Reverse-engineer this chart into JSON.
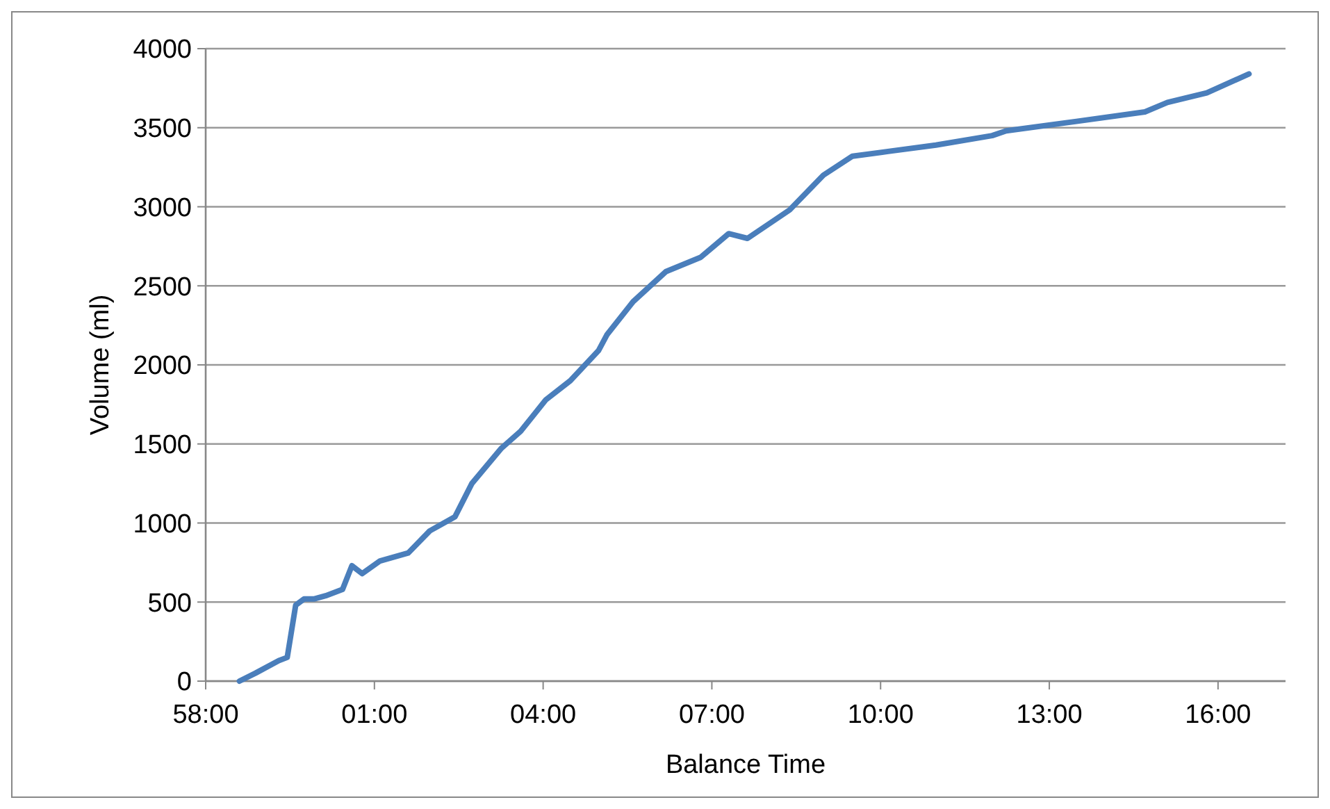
{
  "chart_data": {
    "type": "line",
    "xlabel": "Balance Time",
    "ylabel": "Volume (ml)",
    "xlim": [
      "2000-01-01T00:58:00",
      "2000-01-01T01:17:12"
    ],
    "xticks": [
      {
        "value": "2000-01-01T00:58:00",
        "label": "58:00"
      },
      {
        "value": "2000-01-01T01:01:00",
        "label": "01:00"
      },
      {
        "value": "2000-01-01T01:04:00",
        "label": "04:00"
      },
      {
        "value": "2000-01-01T01:07:00",
        "label": "07:00"
      },
      {
        "value": "2000-01-01T01:10:00",
        "label": "10:00"
      },
      {
        "value": "2000-01-01T01:13:00",
        "label": "13:00"
      },
      {
        "value": "2000-01-01T01:16:00",
        "label": "16:00"
      }
    ],
    "ylim": [
      0,
      4000
    ],
    "yticks": [
      0,
      500,
      1000,
      1500,
      2000,
      2500,
      3000,
      3500,
      4000
    ],
    "grid": "y",
    "series": [
      {
        "color": "#4a7ebb",
        "x": [
          "2000-01-01T00:58:36",
          "2000-01-01T00:58:53",
          "2000-01-01T00:59:18",
          "2000-01-01T00:59:27",
          "2000-01-01T00:59:36",
          "2000-01-01T00:59:45",
          "2000-01-01T00:59:56",
          "2000-01-01T01:00:08",
          "2000-01-01T01:00:26",
          "2000-01-01T01:00:36",
          "2000-01-01T01:00:47",
          "2000-01-01T01:01:06",
          "2000-01-01T01:01:36",
          "2000-01-01T01:01:59",
          "2000-01-01T01:02:26",
          "2000-01-01T01:02:44",
          "2000-01-01T01:03:15",
          "2000-01-01T01:03:36",
          "2000-01-01T01:04:03",
          "2000-01-01T01:04:29",
          "2000-01-01T01:04:59",
          "2000-01-01T01:05:08",
          "2000-01-01T01:05:36",
          "2000-01-01T01:06:11",
          "2000-01-01T01:06:48",
          "2000-01-01T01:07:18",
          "2000-01-01T01:07:38",
          "2000-01-01T01:08:03",
          "2000-01-01T01:08:23",
          "2000-01-01T01:08:59",
          "2000-01-01T01:09:30",
          "2000-01-01T01:10:08",
          "2000-01-01T01:10:59",
          "2000-01-01T01:11:59",
          "2000-01-01T01:12:14",
          "2000-01-01T01:13:29",
          "2000-01-01T01:14:42",
          "2000-01-01T01:15:06",
          "2000-01-01T01:15:48",
          "2000-01-01T01:16:33"
        ],
        "values": [
          0,
          50,
          130,
          150,
          480,
          520,
          520,
          540,
          580,
          730,
          680,
          760,
          810,
          950,
          1040,
          1250,
          1470,
          1580,
          1780,
          1900,
          2090,
          2190,
          2400,
          2590,
          2680,
          2830,
          2800,
          2900,
          2980,
          3200,
          3320,
          3350,
          3390,
          3450,
          3480,
          3540,
          3600,
          3660,
          3720,
          3840
        ]
      }
    ]
  }
}
